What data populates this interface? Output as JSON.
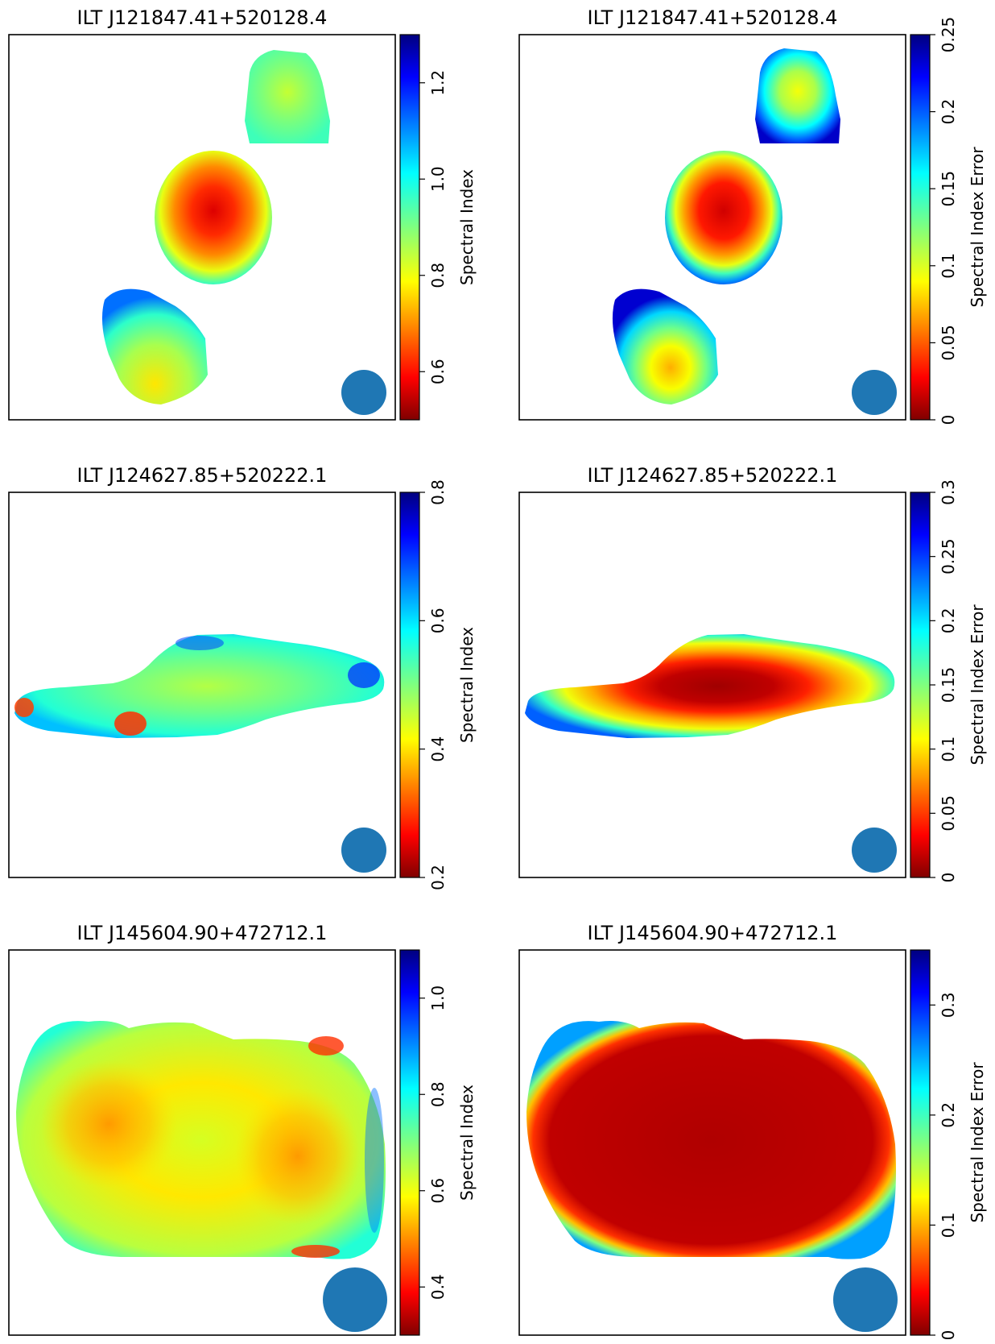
{
  "figure": {
    "panels": [
      {
        "id": "p1",
        "title": "ILT J121847.41+520128.4",
        "colorbar": {
          "label": "Spectral Index",
          "min": 0.5,
          "max": 1.3,
          "ticks": [
            "0.6",
            "0.8",
            "1.0",
            "1.2"
          ],
          "tick_values": [
            0.6,
            0.8,
            1.0,
            1.2
          ]
        }
      },
      {
        "id": "p2",
        "title": "ILT J121847.41+520128.4",
        "colorbar": {
          "label": "Spectral Index Error",
          "min": 0,
          "max": 0.25,
          "ticks": [
            "0",
            "0.05",
            "0.1",
            "0.15",
            "0.2",
            "0.25"
          ],
          "tick_values": [
            0,
            0.05,
            0.1,
            0.15,
            0.2,
            0.25
          ]
        }
      },
      {
        "id": "p3",
        "title": "ILT J124627.85+520222.1",
        "colorbar": {
          "label": "Spectral Index",
          "min": 0.2,
          "max": 0.8,
          "ticks": [
            "0.2",
            "0.4",
            "0.6",
            "0.8"
          ],
          "tick_values": [
            0.2,
            0.4,
            0.6,
            0.8
          ]
        }
      },
      {
        "id": "p4",
        "title": "ILT J124627.85+520222.1",
        "colorbar": {
          "label": "Spectral Index Error",
          "min": 0,
          "max": 0.3,
          "ticks": [
            "0",
            "0.05",
            "0.1",
            "0.15",
            "0.2",
            "0.25",
            "0.3"
          ],
          "tick_values": [
            0,
            0.05,
            0.1,
            0.15,
            0.2,
            0.25,
            0.3
          ]
        }
      },
      {
        "id": "p5",
        "title": "ILT J145604.90+472712.1",
        "colorbar": {
          "label": "Spectral Index",
          "min": 0.3,
          "max": 1.1,
          "ticks": [
            "0.4",
            "0.6",
            "0.8",
            "1.0"
          ],
          "tick_values": [
            0.4,
            0.6,
            0.8,
            1.0
          ]
        }
      },
      {
        "id": "p6",
        "title": "ILT J145604.90+472712.1",
        "colorbar": {
          "label": "Spectral Index Error",
          "min": 0,
          "max": 0.35,
          "ticks": [
            "0",
            "0.1",
            "0.2",
            "0.3"
          ],
          "tick_values": [
            0,
            0.1,
            0.2,
            0.3
          ]
        }
      }
    ],
    "colors": {
      "beam": "#1f77b4",
      "colormap": "jet"
    }
  },
  "chart_data": [
    {
      "type": "heatmap",
      "title": "ILT J121847.41+520128.4",
      "colorbar_label": "Spectral Index",
      "clim": [
        0.5,
        1.3
      ],
      "colormap": "jet_reversed",
      "regions": [
        {
          "component": "upper-right",
          "value_range": [
            0.85,
            0.95
          ]
        },
        {
          "component": "middle",
          "value_range": [
            0.55,
            0.95
          ]
        },
        {
          "component": "lower-left",
          "value_range": [
            0.75,
            1.05
          ]
        }
      ]
    },
    {
      "type": "heatmap",
      "title": "ILT J121847.41+520128.4",
      "colorbar_label": "Spectral Index Error",
      "clim": [
        0,
        0.25
      ],
      "colormap": "jet_reversed",
      "regions": [
        {
          "component": "upper-right",
          "value_range": [
            0.08,
            0.25
          ]
        },
        {
          "component": "middle",
          "value_range": [
            0.01,
            0.25
          ]
        },
        {
          "component": "lower-left",
          "value_range": [
            0.06,
            0.25
          ]
        }
      ]
    },
    {
      "type": "heatmap",
      "title": "ILT J124627.85+520222.1",
      "colorbar_label": "Spectral Index",
      "clim": [
        0.2,
        0.8
      ],
      "colormap": "jet_reversed",
      "regions": [
        {
          "component": "elongated-source",
          "value_range": [
            0.25,
            0.75
          ]
        }
      ]
    },
    {
      "type": "heatmap",
      "title": "ILT J124627.85+520222.1",
      "colorbar_label": "Spectral Index Error",
      "clim": [
        0,
        0.3
      ],
      "colormap": "jet_reversed",
      "regions": [
        {
          "component": "elongated-source",
          "value_range": [
            0.0,
            0.25
          ]
        }
      ]
    },
    {
      "type": "heatmap",
      "title": "ILT J145604.90+472712.1",
      "colorbar_label": "Spectral Index",
      "clim": [
        0.3,
        1.1
      ],
      "colormap": "jet_reversed",
      "regions": [
        {
          "component": "double-lobed-source",
          "value_range": [
            0.35,
            0.85
          ]
        }
      ]
    },
    {
      "type": "heatmap",
      "title": "ILT J145604.90+472712.1",
      "colorbar_label": "Spectral Index Error",
      "clim": [
        0,
        0.35
      ],
      "colormap": "jet_reversed",
      "regions": [
        {
          "component": "double-lobed-source",
          "value_range": [
            0.0,
            0.3
          ]
        }
      ]
    }
  ]
}
